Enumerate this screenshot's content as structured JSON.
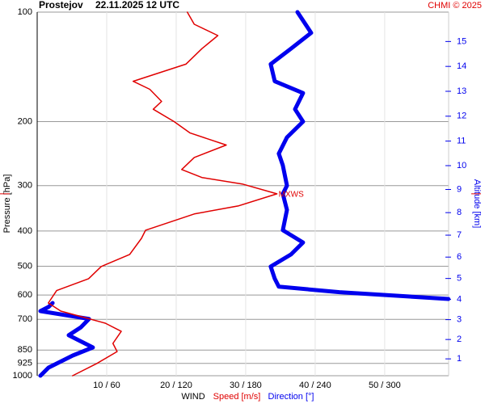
{
  "chart_data": {
    "type": "line",
    "title": "Prostejov",
    "subtitle": "22.11.2025 12 UTC",
    "credit": "CHMI © 2025",
    "ylabel": "Pressure [hPa]",
    "y2label": "Altitude [km]",
    "xlabel": "WIND",
    "ylog": true,
    "ylim": [
      1000,
      100
    ],
    "yticks": [
      100,
      200,
      300,
      400,
      500,
      600,
      700,
      850,
      925,
      1000
    ],
    "xlim": [
      0,
      59.2
    ],
    "x2lim": [
      0,
      355.2
    ],
    "xticks": [
      {
        "value": 10,
        "label": "10 / 60"
      },
      {
        "value": 20,
        "label": "20 / 120"
      },
      {
        "value": 30,
        "label": "30 / 180"
      },
      {
        "value": 40,
        "label": "40 / 240"
      },
      {
        "value": 50,
        "label": "50 / 300"
      }
    ],
    "y2ticks": [
      1,
      2,
      3,
      4,
      5,
      6,
      7,
      8,
      9,
      10,
      11,
      12,
      13,
      14,
      15
    ],
    "grid": true,
    "annotation": {
      "label": "MXWS",
      "pressure": 316
    },
    "series": [
      {
        "name": "Speed [m/s]",
        "color": "#e00000",
        "axis": "x",
        "pressure": [
          100,
          108,
          116,
          126,
          139,
          155,
          163,
          176,
          185,
          200,
          215,
          232,
          251,
          271,
          285,
          297,
          316,
          341,
          359,
          398,
          419,
          464,
          501,
          541,
          583,
          631,
          664,
          717,
          755,
          815,
          858,
          925,
          1000
        ],
        "values": [
          21.6,
          22.6,
          26.0,
          23.7,
          21.4,
          13.8,
          16.2,
          17.9,
          16.7,
          19.7,
          22.0,
          27.2,
          22.6,
          20.8,
          23.7,
          29.5,
          34.5,
          29.0,
          22.6,
          15.6,
          15.0,
          13.3,
          9.2,
          7.4,
          2.8,
          1.6,
          3.4,
          9.8,
          12.1,
          10.9,
          11.5,
          8.6,
          5.1
        ]
      },
      {
        "name": "Direction [°]",
        "color": "#0000ee",
        "axis": "x2",
        "pressure": [
          100,
          114,
          126,
          139,
          155,
          167,
          185,
          200,
          221,
          245,
          264,
          300,
          316,
          350,
          398,
          430,
          464,
          501,
          541,
          569,
          589,
          615,
          623,
          631,
          647,
          664,
          698,
          736,
          774,
          836,
          880,
          950,
          1000
        ],
        "values": [
          224.7,
          236.5,
          219.1,
          201.6,
          205.1,
          229.5,
          222.6,
          229.5,
          215.6,
          208.6,
          212.1,
          215.6,
          212.1,
          215.6,
          212.1,
          229.5,
          219.1,
          201.6,
          205.1,
          208.6,
          260.9,
          355,
          null,
          13.3,
          9.8,
          2.8,
          44.7,
          37.7,
          27.2,
          48.1,
          30.7,
          9.8,
          2.8
        ]
      }
    ]
  }
}
